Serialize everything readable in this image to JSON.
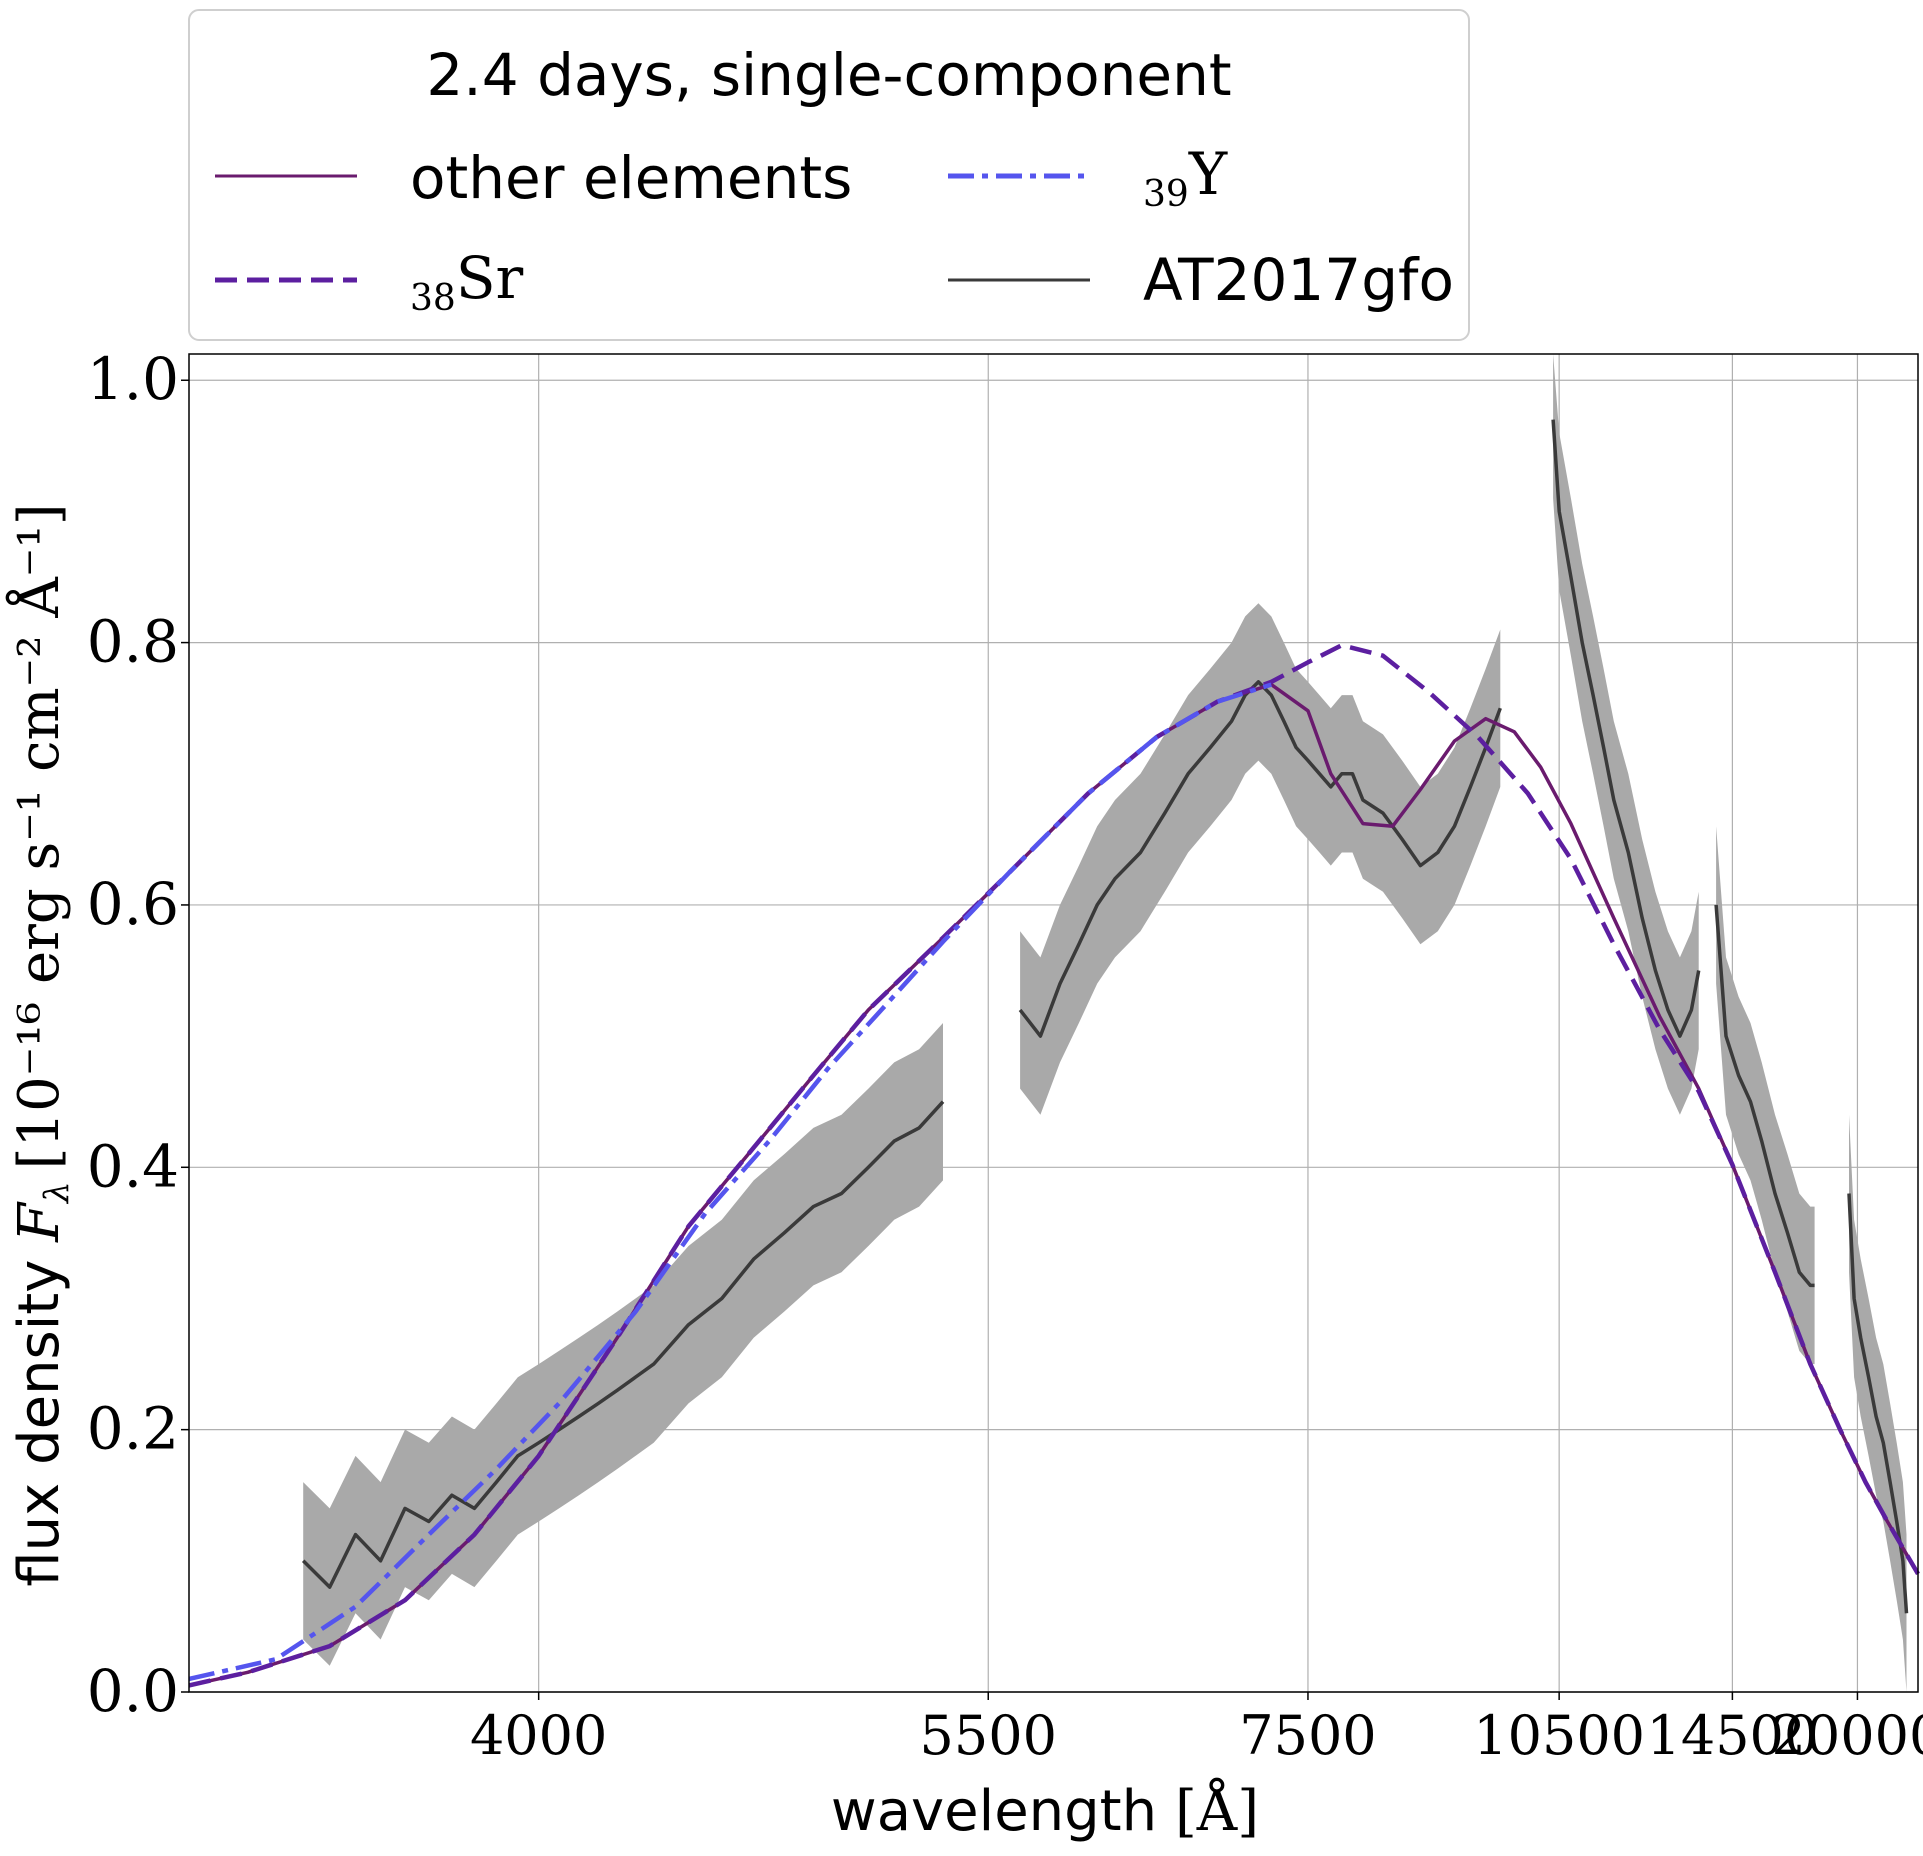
{
  "chart_data": {
    "type": "line",
    "xlabel_prefix": "wavelength ",
    "xlabel_unit": "[Å]",
    "ylabel_prefix": "flux density ",
    "ylabel_unit": "[10⁻¹⁶ erg s⁻¹ cm⁻² Å⁻¹]",
    "ylabel_symbol": "F",
    "ylabel_symbol_sub": "λ",
    "x_scale": "reciprocal",
    "xlim": [
      3300,
      24500
    ],
    "ylim": [
      0,
      1.02
    ],
    "x_ticks": [
      4000,
      5500,
      7500,
      10500,
      14500,
      20000
    ],
    "x_tick_labels": [
      "4000",
      "5500",
      "7500",
      "10500",
      "14500",
      "20000"
    ],
    "y_ticks": [
      0.0,
      0.2,
      0.4,
      0.6,
      0.8,
      1.0
    ],
    "y_tick_labels": [
      "0.0",
      "0.2",
      "0.4",
      "0.6",
      "0.8",
      "1.0"
    ],
    "grid": true,
    "legend": {
      "placement": "top, above plot",
      "title": "2.4 days, single-component",
      "entries": [
        {
          "key": "other",
          "label": "other elements",
          "sub": "",
          "style": "solid"
        },
        {
          "key": "sr",
          "label": "Sr",
          "sub": "38",
          "style": "dashed"
        },
        {
          "key": "y",
          "label": "Y",
          "sub": "39",
          "style": "dashdot"
        },
        {
          "key": "obs",
          "label": "AT2017gfo",
          "sub": "",
          "style": "solid"
        }
      ]
    },
    "colors": {
      "other": "#6a1b6e",
      "sr": "#5c1fa0",
      "y": "#5555ee",
      "obs": "#3a3a3a",
      "obs_error": "#a9a9a9",
      "grid": "#b0b0b0"
    },
    "series": [
      {
        "key": "other",
        "x": [
          3300,
          3400,
          3550,
          3700,
          3850,
          4000,
          4200,
          4400,
          4600,
          4800,
          5000,
          5300,
          5600,
          6000,
          6400,
          6800,
          7200,
          7500,
          7700,
          8000,
          8300,
          8600,
          9000,
          9400,
          9800,
          10200,
          10700,
          11500,
          12500,
          13500,
          14500,
          16000,
          17500,
          19000,
          20500,
          22000,
          24500
        ],
        "y": [
          0.005,
          0.015,
          0.035,
          0.07,
          0.12,
          0.18,
          0.27,
          0.355,
          0.415,
          0.47,
          0.52,
          0.575,
          0.625,
          0.685,
          0.728,
          0.755,
          0.768,
          0.748,
          0.7,
          0.662,
          0.66,
          0.688,
          0.725,
          0.742,
          0.732,
          0.705,
          0.662,
          0.59,
          0.515,
          0.46,
          0.402,
          0.32,
          0.25,
          0.2,
          0.16,
          0.13,
          0.09
        ]
      },
      {
        "key": "sr",
        "x": [
          3300,
          3400,
          3550,
          3700,
          3850,
          4000,
          4200,
          4400,
          4600,
          4800,
          5000,
          5300,
          5600,
          6000,
          6400,
          6800,
          7200,
          7500,
          7800,
          8200,
          8700,
          9300,
          10000,
          10700,
          11500,
          12500,
          13500,
          14500,
          16000,
          17500,
          19000,
          20500,
          22000,
          24500
        ],
        "y": [
          0.005,
          0.015,
          0.035,
          0.07,
          0.12,
          0.18,
          0.27,
          0.355,
          0.415,
          0.47,
          0.52,
          0.575,
          0.625,
          0.685,
          0.728,
          0.755,
          0.77,
          0.785,
          0.798,
          0.79,
          0.762,
          0.728,
          0.685,
          0.635,
          0.57,
          0.505,
          0.458,
          0.402,
          0.32,
          0.25,
          0.2,
          0.16,
          0.13,
          0.09
        ]
      },
      {
        "key": "y",
        "x": [
          3300,
          3450,
          3600,
          3750,
          3900,
          4050,
          4250,
          4450,
          4650,
          4850,
          5050,
          5300,
          5600,
          6000,
          6400,
          6800,
          7200
        ],
        "y": [
          0.01,
          0.025,
          0.065,
          0.12,
          0.17,
          0.22,
          0.29,
          0.365,
          0.42,
          0.475,
          0.52,
          0.572,
          0.625,
          0.685,
          0.728,
          0.755,
          0.768
        ]
      }
    ],
    "observed": {
      "key": "obs",
      "segments": [
        {
          "x": [
            3500,
            3550,
            3600,
            3650,
            3700,
            3750,
            3800,
            3850,
            3900,
            3950,
            4000,
            4050,
            4100,
            4150,
            4200,
            4300,
            4400,
            4500,
            4600,
            4700,
            4800,
            4900,
            5000,
            5100,
            5200,
            5300
          ],
          "y": [
            0.1,
            0.08,
            0.12,
            0.1,
            0.14,
            0.13,
            0.15,
            0.14,
            0.16,
            0.18,
            0.19,
            0.2,
            0.21,
            0.22,
            0.23,
            0.25,
            0.28,
            0.3,
            0.33,
            0.35,
            0.37,
            0.38,
            0.4,
            0.42,
            0.43,
            0.45
          ]
        },
        {
          "x": [
            5650,
            5750,
            5850,
            5950,
            6050,
            6150,
            6300,
            6450,
            6600,
            6750,
            6900,
            7000,
            7100,
            7200,
            7300,
            7400,
            7500,
            7600,
            7700,
            7800,
            7900,
            8000,
            8200,
            8400,
            8600,
            8800,
            9000,
            9200,
            9400,
            9600
          ],
          "y": [
            0.52,
            0.5,
            0.54,
            0.57,
            0.6,
            0.62,
            0.64,
            0.67,
            0.7,
            0.72,
            0.74,
            0.76,
            0.77,
            0.76,
            0.74,
            0.72,
            0.71,
            0.7,
            0.69,
            0.7,
            0.7,
            0.68,
            0.67,
            0.65,
            0.63,
            0.64,
            0.66,
            0.69,
            0.72,
            0.75
          ]
        },
        {
          "x": [
            10400,
            10500,
            10700,
            10900,
            11100,
            11300,
            11500,
            11800,
            12100,
            12400,
            12700,
            13000,
            13300,
            13500
          ],
          "y": [
            0.97,
            0.9,
            0.85,
            0.8,
            0.76,
            0.72,
            0.68,
            0.64,
            0.59,
            0.55,
            0.52,
            0.5,
            0.52,
            0.55
          ]
        },
        {
          "x": [
            14000,
            14300,
            14700,
            15100,
            15500,
            16000,
            16500,
            17000,
            17500,
            17700
          ],
          "y": [
            0.6,
            0.5,
            0.47,
            0.45,
            0.42,
            0.38,
            0.35,
            0.32,
            0.31,
            0.31
          ]
        },
        {
          "x": [
            19500,
            19800,
            20200,
            20700,
            21200,
            21700,
            22200,
            22700,
            23200,
            23500
          ],
          "y": [
            0.38,
            0.3,
            0.27,
            0.24,
            0.21,
            0.19,
            0.16,
            0.13,
            0.1,
            0.06
          ]
        }
      ],
      "error_band": 0.06
    }
  }
}
